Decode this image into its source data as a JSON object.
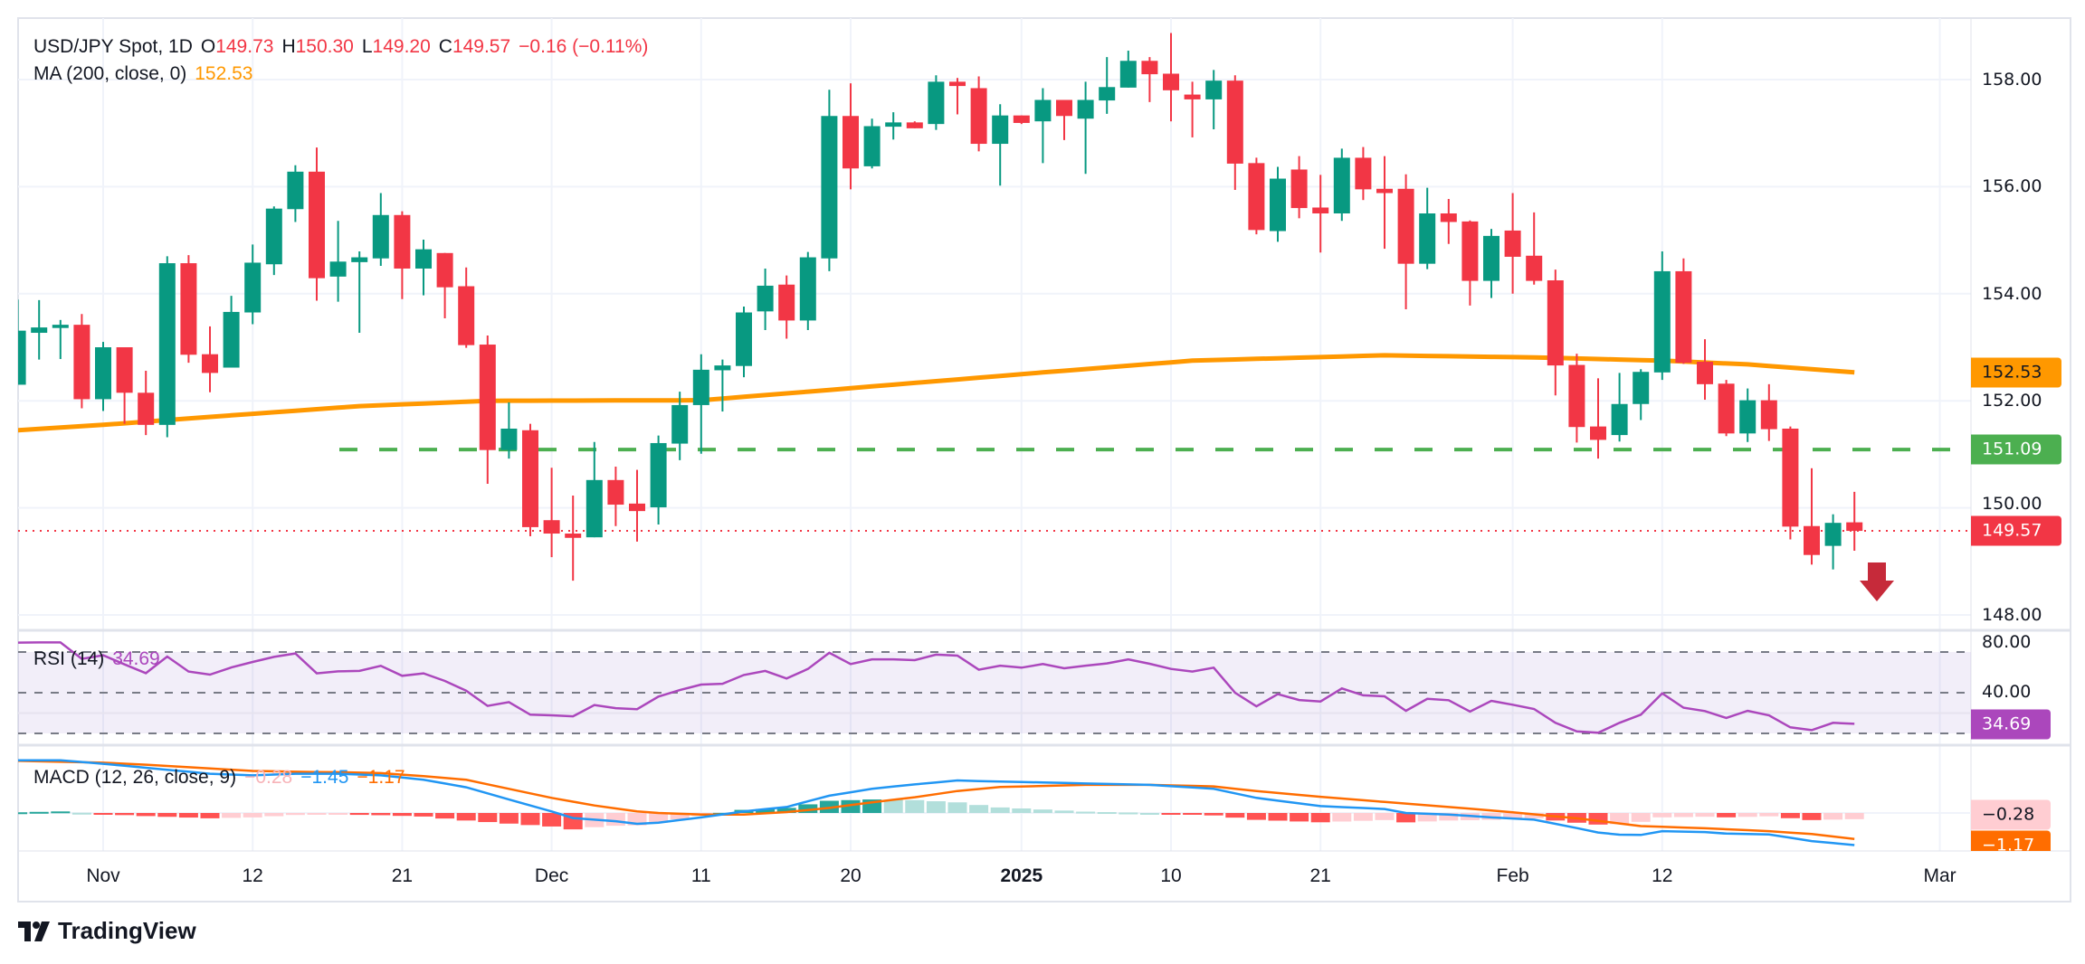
{
  "header": {
    "symbol": "USD/JPY Spot, 1D",
    "open_label": "O",
    "open": "149.73",
    "high_label": "H",
    "high": "150.30",
    "low_label": "L",
    "low": "149.20",
    "close_label": "C",
    "close": "149.57",
    "change": "−0.16 (−0.11%)"
  },
  "ma_legend": {
    "label": "MA (200, close, 0)",
    "value": "152.53"
  },
  "rsi_legend": {
    "label": "RSI (14)",
    "value": "34.69"
  },
  "macd_legend": {
    "label": "MACD (12, 26, close, 9)",
    "hist": "−0.28",
    "macd": "−1.45",
    "signal": "−1.17"
  },
  "price_axis": [
    "158.00",
    "156.00",
    "154.00",
    "152.00",
    "150.00",
    "148.00"
  ],
  "rsi_axis": [
    "80.00",
    "40.00"
  ],
  "price_tags": {
    "ma": "152.53",
    "level": "151.09",
    "last": "149.57",
    "rsi": "34.69",
    "hist": "−0.28",
    "signal": "−1.17"
  },
  "time_axis": [
    {
      "label": "Nov",
      "bar": 4,
      "bold": false
    },
    {
      "label": "12",
      "bar": 11,
      "bold": false
    },
    {
      "label": "21",
      "bar": 18,
      "bold": false
    },
    {
      "label": "Dec",
      "bar": 25,
      "bold": false
    },
    {
      "label": "11",
      "bar": 32,
      "bold": false
    },
    {
      "label": "20",
      "bar": 39,
      "bold": false
    },
    {
      "label": "2025",
      "bar": 47,
      "bold": true
    },
    {
      "label": "10",
      "bar": 54,
      "bold": false
    },
    {
      "label": "21",
      "bar": 61,
      "bold": false
    },
    {
      "label": "Feb",
      "bar": 70,
      "bold": false
    },
    {
      "label": "12",
      "bar": 77,
      "bold": false
    },
    {
      "label": "Mar",
      "bar": 90,
      "bold": false
    }
  ],
  "logo": {
    "text": "TradingView"
  },
  "colors": {
    "up": "#089981",
    "down": "#f23645",
    "ma": "#ff9800",
    "level": "#4caf50",
    "rsi": "#ab47bc",
    "macd": "#2196f3",
    "signal": "#ff6d00",
    "hist_up_strong": "#26a69a",
    "hist_up_weak": "#b2dfdb",
    "hist_down_strong": "#ff5252",
    "hist_down_weak": "#ffcdd2",
    "arrow": "#c62a3a"
  },
  "chart_data": {
    "type": "candlestick",
    "title": "USD/JPY Spot, 1D",
    "ylim": [
      147.5,
      159.2
    ],
    "grid": true,
    "yticks": [
      148,
      150,
      152,
      154,
      156,
      158
    ],
    "support_level": 151.09,
    "last_price": 149.57,
    "annotation": "down-arrow",
    "candles_ohlc": [
      [
        152.3,
        153.89,
        152.3,
        153.31
      ],
      [
        153.27,
        153.88,
        152.77,
        153.37
      ],
      [
        153.36,
        153.51,
        152.78,
        153.42
      ],
      [
        153.42,
        153.62,
        151.86,
        152.03
      ],
      [
        152.03,
        153.1,
        151.81,
        153.0
      ],
      [
        153.0,
        153.0,
        151.57,
        152.15
      ],
      [
        152.15,
        152.56,
        151.36,
        151.55
      ],
      [
        151.55,
        154.7,
        151.32,
        154.57
      ],
      [
        154.57,
        154.72,
        152.71,
        152.86
      ],
      [
        152.87,
        153.39,
        152.16,
        152.52
      ],
      [
        152.62,
        153.96,
        152.62,
        153.66
      ],
      [
        153.65,
        154.92,
        153.43,
        154.58
      ],
      [
        154.55,
        155.63,
        154.35,
        155.59
      ],
      [
        155.58,
        156.4,
        155.34,
        156.28
      ],
      [
        156.28,
        156.73,
        153.87,
        154.29
      ],
      [
        154.32,
        155.36,
        153.85,
        154.6
      ],
      [
        154.59,
        154.79,
        153.27,
        154.68
      ],
      [
        154.66,
        155.88,
        154.52,
        155.47
      ],
      [
        155.47,
        155.54,
        153.9,
        154.47
      ],
      [
        154.47,
        155.01,
        153.97,
        154.83
      ],
      [
        154.76,
        154.76,
        153.54,
        154.12
      ],
      [
        154.14,
        154.49,
        152.99,
        153.04
      ],
      [
        153.05,
        153.22,
        150.45,
        151.08
      ],
      [
        151.08,
        151.97,
        150.92,
        151.48
      ],
      [
        151.45,
        151.57,
        149.47,
        149.64
      ],
      [
        149.77,
        150.75,
        149.08,
        149.52
      ],
      [
        149.52,
        150.23,
        148.64,
        149.44
      ],
      [
        149.45,
        151.23,
        149.45,
        150.52
      ],
      [
        150.52,
        150.77,
        149.66,
        150.06
      ],
      [
        150.08,
        150.71,
        149.37,
        149.94
      ],
      [
        150.01,
        151.35,
        149.69,
        151.21
      ],
      [
        151.2,
        152.17,
        150.89,
        151.92
      ],
      [
        151.92,
        152.87,
        151.01,
        152.58
      ],
      [
        152.57,
        152.77,
        151.8,
        152.66
      ],
      [
        152.65,
        153.76,
        152.44,
        153.65
      ],
      [
        153.67,
        154.47,
        153.32,
        154.15
      ],
      [
        154.17,
        154.34,
        153.16,
        153.5
      ],
      [
        153.5,
        154.78,
        153.32,
        154.68
      ],
      [
        154.66,
        157.81,
        154.42,
        157.32
      ],
      [
        157.32,
        157.93,
        155.95,
        156.34
      ],
      [
        156.38,
        157.27,
        156.34,
        157.13
      ],
      [
        157.12,
        157.39,
        156.88,
        157.2
      ],
      [
        157.2,
        157.22,
        157.09,
        157.09
      ],
      [
        157.17,
        158.08,
        157.06,
        157.96
      ],
      [
        157.96,
        158.03,
        157.35,
        157.88
      ],
      [
        157.84,
        158.06,
        156.66,
        156.8
      ],
      [
        156.8,
        157.54,
        156.02,
        157.33
      ],
      [
        157.33,
        157.33,
        157.17,
        157.19
      ],
      [
        157.22,
        157.84,
        156.44,
        157.62
      ],
      [
        157.62,
        157.62,
        156.87,
        157.32
      ],
      [
        157.27,
        157.96,
        156.24,
        157.62
      ],
      [
        157.61,
        158.42,
        157.36,
        157.86
      ],
      [
        157.85,
        158.54,
        157.85,
        158.35
      ],
      [
        158.35,
        158.42,
        157.58,
        158.1
      ],
      [
        158.11,
        158.87,
        157.22,
        157.8
      ],
      [
        157.72,
        157.96,
        156.92,
        157.63
      ],
      [
        157.63,
        158.18,
        157.07,
        157.98
      ],
      [
        157.98,
        158.08,
        155.94,
        156.43
      ],
      [
        156.44,
        156.54,
        155.11,
        155.19
      ],
      [
        155.17,
        156.37,
        154.97,
        156.15
      ],
      [
        156.32,
        156.57,
        155.41,
        155.6
      ],
      [
        155.61,
        156.22,
        154.77,
        155.5
      ],
      [
        155.5,
        156.71,
        155.36,
        156.54
      ],
      [
        156.54,
        156.74,
        155.75,
        155.95
      ],
      [
        155.96,
        156.57,
        154.84,
        155.88
      ],
      [
        155.96,
        156.23,
        153.71,
        154.56
      ],
      [
        154.56,
        155.98,
        154.46,
        155.5
      ],
      [
        155.5,
        155.77,
        154.93,
        155.34
      ],
      [
        155.35,
        155.37,
        153.78,
        154.24
      ],
      [
        154.24,
        155.21,
        153.92,
        155.08
      ],
      [
        155.18,
        155.88,
        154.0,
        154.69
      ],
      [
        154.71,
        155.52,
        154.17,
        154.24
      ],
      [
        154.25,
        154.45,
        152.1,
        152.66
      ],
      [
        152.67,
        152.88,
        151.22,
        151.51
      ],
      [
        151.52,
        152.42,
        150.92,
        151.27
      ],
      [
        151.36,
        152.52,
        151.24,
        151.94
      ],
      [
        151.94,
        152.59,
        151.64,
        152.54
      ],
      [
        152.53,
        154.79,
        152.39,
        154.42
      ],
      [
        154.42,
        154.66,
        152.69,
        152.71
      ],
      [
        152.73,
        153.15,
        152.02,
        152.31
      ],
      [
        152.32,
        152.39,
        151.34,
        151.39
      ],
      [
        151.39,
        152.23,
        151.23,
        152.01
      ],
      [
        152.01,
        152.31,
        151.25,
        151.47
      ],
      [
        151.48,
        151.52,
        149.41,
        149.65
      ],
      [
        149.66,
        150.74,
        148.94,
        149.12
      ],
      [
        149.29,
        149.88,
        148.85,
        149.72
      ],
      [
        149.73,
        150.3,
        149.2,
        149.57
      ]
    ],
    "ma200": [
      [
        0,
        151.45
      ],
      [
        4,
        151.55
      ],
      [
        8,
        151.67
      ],
      [
        16,
        151.9
      ],
      [
        22,
        152.0
      ],
      [
        32,
        152.01
      ],
      [
        37,
        152.17
      ],
      [
        48,
        152.53
      ],
      [
        55,
        152.75
      ],
      [
        64,
        152.85
      ],
      [
        71,
        152.81
      ],
      [
        77,
        152.75
      ],
      [
        81,
        152.68
      ],
      [
        86,
        152.53
      ]
    ],
    "rsi": {
      "ylim": [
        80,
        30
      ],
      "bands": [
        70,
        50,
        30
      ],
      "values": [
        74.6,
        74.7,
        74.7,
        66.6,
        68.4,
        63.9,
        59.6,
        67.8,
        60.4,
        58.9,
        62.4,
        65.1,
        67.6,
        69.3,
        59.5,
        60.5,
        60.7,
        63.2,
        58.3,
        59.5,
        55.8,
        51.0,
        43.5,
        45.4,
        39.2,
        38.9,
        38.4,
        43.9,
        42.4,
        41.9,
        48.1,
        51.3,
        54.0,
        54.4,
        58.7,
        60.7,
        57.0,
        61.7,
        69.6,
        64.1,
        66.4,
        66.4,
        66.0,
        68.7,
        68.2,
        61.3,
        63.3,
        62.3,
        64.1,
        62.0,
        63.3,
        64.4,
        66.4,
        64.2,
        61.7,
        60.4,
        62.3,
        50.0,
        43.3,
        49.3,
        46.4,
        45.7,
        52.1,
        48.7,
        48.2,
        41.1,
        47.0,
        46.3,
        40.7,
        46.0,
        44.1,
        42.0,
        35.2,
        31.0,
        30.3,
        35.2,
        39.2,
        49.7,
        42.6,
        41.0,
        37.6,
        41.1,
        38.9,
        33.0,
        31.6,
        35.2,
        34.69
      ]
    },
    "macd": {
      "macd_line": [
        [
          0,
          2.38
        ],
        [
          2,
          2.38
        ],
        [
          4,
          2.22
        ],
        [
          6,
          2.04
        ],
        [
          9,
          1.77
        ],
        [
          11,
          1.7
        ],
        [
          13,
          1.77
        ],
        [
          15,
          1.77
        ],
        [
          17,
          1.7
        ],
        [
          19,
          1.5
        ],
        [
          21,
          1.16
        ],
        [
          23,
          0.61
        ],
        [
          25,
          0.07
        ],
        [
          26,
          -0.23
        ],
        [
          28,
          -0.37
        ],
        [
          29,
          -0.49
        ],
        [
          30,
          -0.44
        ],
        [
          32,
          -0.2
        ],
        [
          34,
          0.07
        ],
        [
          36,
          0.27
        ],
        [
          38,
          0.78
        ],
        [
          40,
          1.09
        ],
        [
          42,
          1.29
        ],
        [
          44,
          1.47
        ],
        [
          45,
          1.44
        ],
        [
          47,
          1.4
        ],
        [
          50,
          1.33
        ],
        [
          53,
          1.27
        ],
        [
          56,
          1.09
        ],
        [
          58,
          0.68
        ],
        [
          61,
          0.31
        ],
        [
          64,
          0.18
        ],
        [
          65,
          0.0
        ],
        [
          67,
          -0.07
        ],
        [
          69,
          -0.2
        ],
        [
          71,
          -0.3
        ],
        [
          73,
          -0.68
        ],
        [
          74,
          -0.88
        ],
        [
          75,
          -0.98
        ],
        [
          76,
          -0.99
        ],
        [
          77,
          -0.82
        ],
        [
          79,
          -0.86
        ],
        [
          80,
          -0.93
        ],
        [
          82,
          -0.97
        ],
        [
          84,
          -1.27
        ],
        [
          86,
          -1.45
        ]
      ],
      "signal_line": [
        [
          0,
          2.35
        ],
        [
          4,
          2.27
        ],
        [
          6,
          2.18
        ],
        [
          9,
          2.01
        ],
        [
          11,
          1.9
        ],
        [
          13,
          1.86
        ],
        [
          15,
          1.84
        ],
        [
          17,
          1.8
        ],
        [
          19,
          1.66
        ],
        [
          21,
          1.5
        ],
        [
          23,
          1.09
        ],
        [
          25,
          0.68
        ],
        [
          27,
          0.34
        ],
        [
          29,
          0.07
        ],
        [
          30,
          0.0
        ],
        [
          32,
          -0.07
        ],
        [
          34,
          -0.07
        ],
        [
          36,
          0.04
        ],
        [
          38,
          0.23
        ],
        [
          40,
          0.48
        ],
        [
          42,
          0.71
        ],
        [
          44,
          0.99
        ],
        [
          46,
          1.17
        ],
        [
          48,
          1.22
        ],
        [
          50,
          1.27
        ],
        [
          53,
          1.27
        ],
        [
          56,
          1.2
        ],
        [
          58,
          0.99
        ],
        [
          61,
          0.73
        ],
        [
          64,
          0.5
        ],
        [
          67,
          0.27
        ],
        [
          70,
          0.03
        ],
        [
          73,
          -0.24
        ],
        [
          76,
          -0.59
        ],
        [
          79,
          -0.69
        ],
        [
          82,
          -0.82
        ],
        [
          84,
          -0.95
        ],
        [
          86,
          -1.17
        ]
      ]
    }
  }
}
